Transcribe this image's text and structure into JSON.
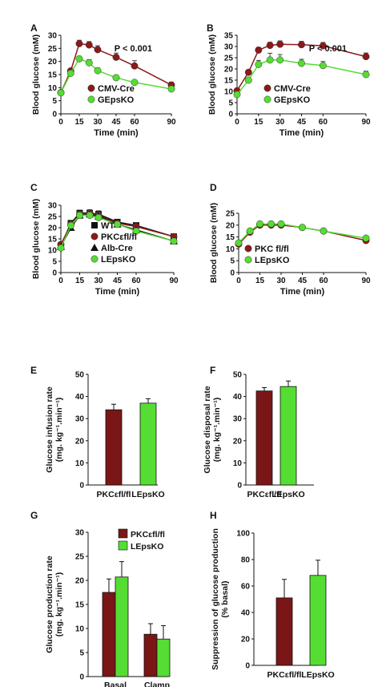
{
  "chart_data": [
    {
      "panel": "A",
      "type": "line",
      "title": "",
      "stat_annotation": "P < 0.001",
      "xlabel": "Time (min)",
      "ylabel": "Blood glucose (mM)",
      "xlim": [
        0,
        90
      ],
      "ylim": [
        0,
        30
      ],
      "xticks": [
        0,
        15,
        30,
        45,
        60,
        90
      ],
      "yticks": [
        0,
        5,
        10,
        15,
        20,
        25,
        30
      ],
      "legend_position": "bottom-right",
      "series": [
        {
          "name": "CMV-Cre",
          "color": "#8b1a1a",
          "marker": "circle",
          "x": [
            0,
            8,
            15,
            23,
            30,
            45,
            60,
            90
          ],
          "y": [
            8.1,
            16.4,
            26.8,
            26.3,
            24.5,
            21.6,
            18.3,
            11.0
          ],
          "err": [
            0.5,
            0.8,
            1.3,
            1.3,
            1.5,
            1.6,
            2.0,
            1.1
          ]
        },
        {
          "name": "GEpsKO",
          "color": "#55dd33",
          "marker": "circle",
          "x": [
            0,
            8,
            15,
            23,
            30,
            45,
            60,
            90
          ],
          "y": [
            8.0,
            15.5,
            21.0,
            19.5,
            16.5,
            13.8,
            12.0,
            9.5
          ],
          "err": [
            0.5,
            0.7,
            0.9,
            1.2,
            1.0,
            0.9,
            0.8,
            0.6
          ]
        }
      ]
    },
    {
      "panel": "B",
      "type": "line",
      "title": "",
      "stat_annotation": "P < 0.001",
      "xlabel": "Time (min)",
      "ylabel": "Blood glucose (mM)",
      "xlim": [
        0,
        90
      ],
      "ylim": [
        0,
        35
      ],
      "xticks": [
        0,
        15,
        30,
        45,
        60,
        90
      ],
      "yticks": [
        0,
        5,
        10,
        15,
        20,
        25,
        30,
        35
      ],
      "legend_position": "bottom-right",
      "series": [
        {
          "name": "CMV-Cre",
          "color": "#8b1a1a",
          "marker": "circle",
          "x": [
            0,
            8,
            15,
            23,
            30,
            45,
            60,
            90
          ],
          "y": [
            10.3,
            18.5,
            28.4,
            30.5,
            31.0,
            30.8,
            30.3,
            25.5
          ],
          "err": [
            0.6,
            0.9,
            1.2,
            1.4,
            1.5,
            1.5,
            1.5,
            1.6
          ]
        },
        {
          "name": "GEpsKO",
          "color": "#55dd33",
          "marker": "circle",
          "x": [
            0,
            8,
            15,
            23,
            30,
            45,
            60,
            90
          ],
          "y": [
            8.6,
            15.0,
            22.0,
            24.0,
            24.0,
            22.5,
            21.5,
            17.5
          ],
          "err": [
            0.6,
            0.9,
            1.8,
            3.0,
            2.4,
            1.8,
            1.8,
            1.5
          ]
        }
      ]
    },
    {
      "panel": "C",
      "type": "line",
      "title": "",
      "xlabel": "Time (min)",
      "ylabel": "Blood glucose (mM)",
      "xlim": [
        0,
        90
      ],
      "ylim": [
        0,
        30
      ],
      "xticks": [
        0,
        15,
        30,
        45,
        60,
        90
      ],
      "yticks": [
        0,
        5,
        10,
        15,
        20,
        25,
        30
      ],
      "legend_position": "bottom-left",
      "series": [
        {
          "name": "WT",
          "color": "#111111",
          "marker": "square",
          "x": [
            0,
            8,
            15,
            23,
            30,
            45,
            60,
            90
          ],
          "y": [
            12.0,
            22.0,
            26.5,
            26.5,
            26.0,
            22.5,
            21.0,
            16.0
          ],
          "err": [
            0.6,
            1.0,
            1.3,
            1.5,
            1.5,
            1.2,
            1.1,
            1.2
          ]
        },
        {
          "name": "PKCεfl/fl",
          "color": "#8b1a1a",
          "marker": "circle",
          "x": [
            0,
            8,
            15,
            23,
            30,
            45,
            60,
            90
          ],
          "y": [
            12.5,
            21.5,
            26.0,
            26.5,
            25.5,
            22.0,
            20.5,
            16.0
          ],
          "err": [
            0.6,
            1.0,
            1.3,
            1.5,
            1.4,
            1.2,
            1.1,
            1.2
          ]
        },
        {
          "name": "Alb-Cre",
          "color": "#111111",
          "marker": "triangle",
          "x": [
            0,
            8,
            15,
            23,
            30,
            45,
            60,
            90
          ],
          "y": [
            11.5,
            20.0,
            25.5,
            26.0,
            25.0,
            21.5,
            19.0,
            14.0
          ],
          "err": [
            0.6,
            1.0,
            1.3,
            1.5,
            1.4,
            1.2,
            1.1,
            1.1
          ]
        },
        {
          "name": "LEpsKO",
          "color": "#55dd33",
          "marker": "circle",
          "x": [
            0,
            8,
            15,
            23,
            30,
            45,
            60,
            90
          ],
          "y": [
            11.0,
            21.0,
            25.5,
            25.5,
            24.5,
            21.5,
            18.5,
            14.0
          ],
          "err": [
            0.6,
            1.0,
            1.3,
            1.5,
            1.4,
            1.2,
            1.1,
            1.1
          ]
        }
      ]
    },
    {
      "panel": "D",
      "type": "line",
      "title": "",
      "xlabel": "Time (min)",
      "ylabel": "Blood glucose (mM)",
      "xlim": [
        0,
        90
      ],
      "ylim": [
        0,
        25
      ],
      "xticks": [
        0,
        15,
        30,
        45,
        60,
        90
      ],
      "yticks": [
        0,
        5,
        10,
        15,
        20,
        25
      ],
      "legend_position": "bottom-left",
      "series": [
        {
          "name": "PKC fl/fl",
          "color": "#8b1a1a",
          "marker": "circle",
          "x": [
            0,
            8,
            15,
            23,
            30,
            45,
            60,
            90
          ],
          "y": [
            12.0,
            17.0,
            20.0,
            20.0,
            20.0,
            19.0,
            17.5,
            13.5
          ],
          "err": [
            0.4,
            0.6,
            0.8,
            0.9,
            0.9,
            0.8,
            0.7,
            0.6
          ]
        },
        {
          "name": "LEpsKO",
          "color": "#55dd33",
          "marker": "circle",
          "x": [
            0,
            8,
            15,
            23,
            30,
            45,
            60,
            90
          ],
          "y": [
            12.5,
            17.5,
            20.5,
            20.5,
            20.5,
            19.0,
            17.5,
            14.5
          ],
          "err": [
            0.4,
            0.6,
            0.8,
            0.9,
            0.9,
            0.8,
            0.7,
            0.6
          ]
        }
      ]
    },
    {
      "panel": "E",
      "type": "bar",
      "title": "",
      "xlabel": "",
      "ylabel": "Glucose infusion rate (mg. kg⁻¹.min⁻¹)",
      "ylim": [
        0,
        50
      ],
      "yticks": [
        0,
        10,
        20,
        30,
        40,
        50
      ],
      "categories": [
        "PKCεfl/fl",
        "LEpsKO"
      ],
      "colors": [
        "#7a1616",
        "#55dd33"
      ],
      "values": [
        34.0,
        37.0
      ],
      "err": [
        2.5,
        2.0
      ]
    },
    {
      "panel": "F",
      "type": "bar",
      "title": "",
      "xlabel": "",
      "ylabel": "Glucose disposal rate (mg. kg⁻¹.min⁻¹)",
      "ylim": [
        0,
        50
      ],
      "yticks": [
        0,
        10,
        20,
        30,
        40,
        50
      ],
      "categories": [
        "PKCεfl/fl",
        "LEpsKO"
      ],
      "colors": [
        "#7a1616",
        "#55dd33"
      ],
      "values": [
        42.5,
        44.5
      ],
      "err": [
        1.5,
        2.5
      ]
    },
    {
      "panel": "G",
      "type": "bar",
      "title": "",
      "xlabel": "",
      "ylabel": "Glucose production rate (mg. kg⁻¹.min⁻¹)",
      "ylim": [
        0,
        30
      ],
      "yticks": [
        0,
        5,
        10,
        15,
        20,
        25,
        30
      ],
      "legend_position": "top-right",
      "categories": [
        "Basal",
        "Clamp"
      ],
      "series": [
        {
          "name": "PKCεfl/fl",
          "color": "#7a1616",
          "values": [
            17.5,
            8.8
          ],
          "err": [
            2.8,
            2.2
          ]
        },
        {
          "name": "LEpsKO",
          "color": "#55dd33",
          "values": [
            20.7,
            7.8
          ],
          "err": [
            3.2,
            2.8
          ]
        }
      ]
    },
    {
      "panel": "H",
      "type": "bar",
      "title": "",
      "xlabel": "",
      "ylabel": "Suppression of glucose production (% basal)",
      "ylim": [
        0,
        100
      ],
      "yticks": [
        0,
        20,
        40,
        60,
        80,
        100
      ],
      "categories": [
        "PKCεfl/fl",
        "LEpsKO"
      ],
      "colors": [
        "#7a1616",
        "#55dd33"
      ],
      "values": [
        51.0,
        68.0
      ],
      "err": [
        14.0,
        11.5
      ]
    }
  ]
}
